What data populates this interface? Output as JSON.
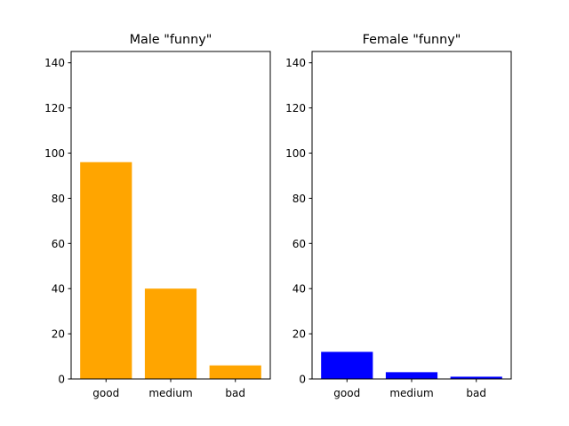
{
  "chart_data": [
    {
      "type": "bar",
      "title": "Male \"funny\"",
      "categories": [
        "good",
        "medium",
        "bad"
      ],
      "values": [
        96,
        40,
        6
      ],
      "color": "#ffa500",
      "xlabel": "",
      "ylabel": "",
      "ylim": [
        0,
        145
      ],
      "yticks": [
        "0",
        "20",
        "40",
        "60",
        "80",
        "100",
        "120",
        "140"
      ],
      "grid": false
    },
    {
      "type": "bar",
      "title": "Female \"funny\"",
      "categories": [
        "good",
        "medium",
        "bad"
      ],
      "values": [
        12,
        3,
        1
      ],
      "color": "#0000ff",
      "xlabel": "",
      "ylabel": "",
      "ylim": [
        0,
        145
      ],
      "yticks": [
        "0",
        "20",
        "40",
        "60",
        "80",
        "100",
        "120",
        "140"
      ],
      "grid": false
    }
  ]
}
